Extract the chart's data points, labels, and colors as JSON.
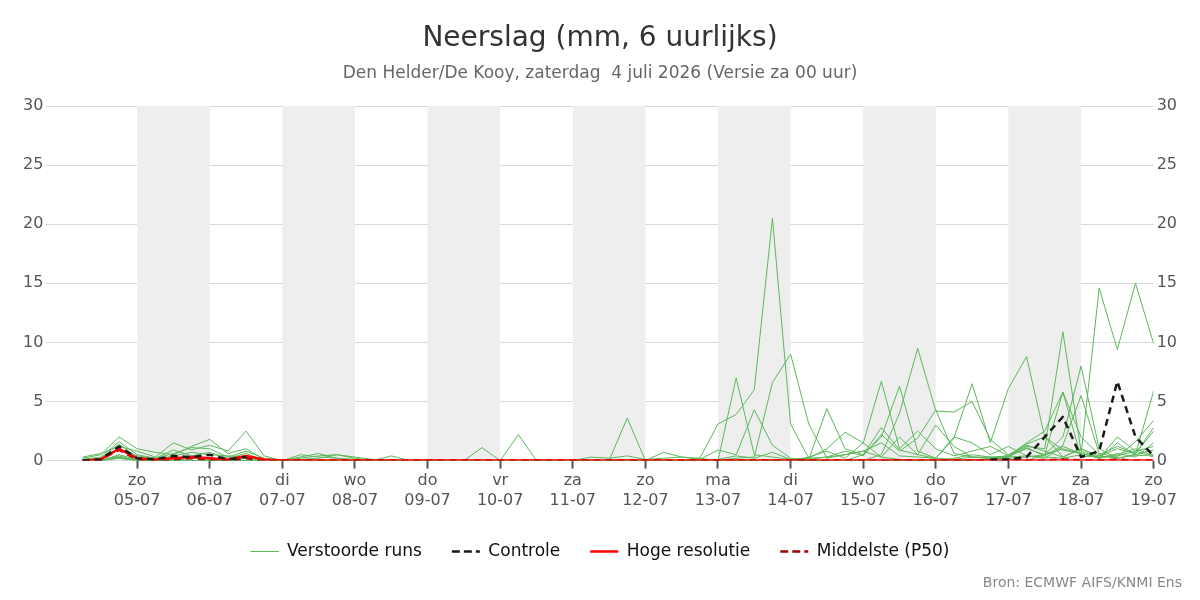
{
  "chart_data": {
    "type": "line",
    "title": "Neerslag (mm, 6 uurlijks)",
    "subtitle": "Den Helder/De Kooy, zaterdag  4 juli 2026 (Versie za 00 uur)",
    "x": [
      "2026-07-04T06:00",
      "2026-07-04T12:00",
      "2026-07-04T18:00",
      "2026-07-05T00:00",
      "2026-07-05T06:00",
      "2026-07-05T12:00",
      "2026-07-05T18:00",
      "2026-07-06T00:00",
      "2026-07-06T06:00",
      "2026-07-06T12:00",
      "2026-07-06T18:00",
      "2026-07-07T00:00",
      "2026-07-07T06:00",
      "2026-07-07T12:00",
      "2026-07-07T18:00",
      "2026-07-08T00:00",
      "2026-07-08T06:00",
      "2026-07-08T12:00",
      "2026-07-08T18:00",
      "2026-07-09T00:00",
      "2026-07-09T06:00",
      "2026-07-09T12:00",
      "2026-07-09T18:00",
      "2026-07-10T00:00",
      "2026-07-10T06:00",
      "2026-07-10T12:00",
      "2026-07-10T18:00",
      "2026-07-11T00:00",
      "2026-07-11T06:00",
      "2026-07-11T12:00",
      "2026-07-11T18:00",
      "2026-07-12T00:00",
      "2026-07-12T06:00",
      "2026-07-12T12:00",
      "2026-07-12T18:00",
      "2026-07-13T00:00",
      "2026-07-13T06:00",
      "2026-07-13T12:00",
      "2026-07-13T18:00",
      "2026-07-14T00:00",
      "2026-07-14T06:00",
      "2026-07-14T12:00",
      "2026-07-14T18:00",
      "2026-07-15T00:00",
      "2026-07-15T06:00",
      "2026-07-15T12:00",
      "2026-07-15T18:00",
      "2026-07-16T00:00",
      "2026-07-16T06:00",
      "2026-07-16T12:00",
      "2026-07-16T18:00",
      "2026-07-17T00:00",
      "2026-07-17T06:00",
      "2026-07-17T12:00",
      "2026-07-17T18:00",
      "2026-07-18T00:00",
      "2026-07-18T06:00",
      "2026-07-18T12:00",
      "2026-07-18T18:00",
      "2026-07-19T00:00"
    ],
    "series": [
      {
        "name": "Verstoorde runs",
        "color": "#5cb85c",
        "line_style": "solid",
        "values": [
          0.2,
          0.5,
          2.0,
          1.0,
          0.7,
          0.5,
          1.2,
          1.8,
          0.6,
          1.0,
          0.1,
          0,
          0,
          0,
          0,
          0,
          0,
          0,
          0,
          0,
          0,
          0,
          0,
          0,
          0,
          0,
          0,
          0,
          0,
          0,
          0,
          0,
          0,
          0,
          0.2,
          3.1,
          3.9,
          6.0,
          20.5,
          3.1,
          0.2,
          0.3,
          0.5,
          0.8,
          0.3,
          0.1,
          0,
          0,
          0.2,
          0.5,
          0.3,
          0.1,
          0,
          0.5,
          1.0,
          0.6,
          0.3,
          0.4,
          0.8,
          1.2
        ]
      },
      {
        "color": "#5cb85c",
        "line_style": "solid",
        "values": [
          0.3,
          0.6,
          1.2,
          0.8,
          0.3,
          1.5,
          0.9,
          1.3,
          0.8,
          2.5,
          0.4,
          0,
          0.5,
          0.3,
          0.2,
          0,
          0,
          0,
          0,
          0,
          0,
          0,
          1.1,
          0,
          2.2,
          0,
          0,
          0,
          0,
          0,
          3.6,
          0,
          0.7,
          0.3,
          0.2,
          0,
          7.0,
          0.5,
          0.3,
          0.1,
          0.2,
          1.0,
          2.4,
          1.5,
          0.3,
          2.0,
          0.5,
          0.2,
          0.1,
          0.3,
          0.2,
          0.4,
          1.0,
          0.5,
          5.8,
          0.3,
          0.4,
          1.0,
          0.6,
          2.5
        ]
      },
      {
        "color": "#5cb85c",
        "line_style": "solid",
        "values": [
          0.1,
          0.3,
          1.6,
          0.5,
          0.2,
          0.6,
          1.1,
          1.0,
          0.3,
          0.8,
          0.2,
          0,
          0.3,
          0.6,
          0.2,
          0.1,
          0,
          0,
          0,
          0.1,
          0,
          0,
          0,
          0,
          0,
          0,
          0,
          0,
          0.3,
          0.2,
          0.4,
          0.1,
          0.2,
          0.3,
          0.1,
          0.9,
          0.5,
          4.3,
          1.3,
          0.2,
          0.1,
          0.3,
          0.8,
          0.4,
          2.2,
          0.8,
          1.9,
          4.3,
          0.6,
          0.3,
          0.2,
          0.3,
          1.1,
          0.4,
          1.3,
          5.5,
          0.6,
          0.3,
          1.6,
          3.4
        ]
      },
      {
        "color": "#5cb85c",
        "line_style": "solid",
        "values": [
          0,
          0.2,
          1.0,
          0.4,
          0.2,
          0.9,
          0.4,
          0.7,
          0.2,
          0.6,
          0,
          0,
          0.2,
          0.4,
          0.5,
          0.2,
          0,
          0.4,
          0,
          0,
          0,
          0,
          0,
          0,
          0,
          0,
          0,
          0,
          0,
          0,
          0,
          0,
          0,
          0,
          0,
          0,
          0.2,
          0.3,
          6.6,
          9.0,
          3.1,
          0.2,
          0.5,
          0.8,
          1.5,
          0.4,
          0.3,
          0.2,
          2.0,
          1.5,
          0.5,
          1.2,
          0.4,
          0.2,
          1.2,
          0.6,
          0.2,
          2.0,
          0.8,
          0.3
        ]
      },
      {
        "color": "#5cb85c",
        "line_style": "solid",
        "values": [
          0.1,
          0.2,
          1.4,
          0.3,
          0.1,
          0.4,
          0.7,
          0.5,
          0.4,
          0.3,
          0,
          0,
          0.1,
          0.2,
          0.5,
          0.3,
          0.1,
          0,
          0,
          0,
          0,
          0,
          0,
          0,
          0,
          0,
          0,
          0,
          0,
          0,
          0,
          0,
          0,
          0,
          0,
          0.1,
          0.4,
          0.2,
          0.7,
          0.1,
          0.1,
          4.4,
          1.0,
          0.5,
          2.8,
          0.9,
          0.5,
          3.0,
          1.2,
          0.3,
          0.3,
          0.4,
          1.4,
          2.0,
          0.9,
          0.6,
          0.2,
          1.5,
          0.4,
          0.5
        ]
      },
      {
        "color": "#5cb85c",
        "line_style": "solid",
        "values": [
          0,
          0,
          0.5,
          0.1,
          0,
          0,
          0.2,
          0.1,
          0,
          0.2,
          0,
          0,
          0,
          0,
          0,
          0,
          0,
          0,
          0,
          0,
          0,
          0,
          0,
          0,
          0,
          0,
          0,
          0,
          0,
          0,
          0,
          0,
          0,
          0,
          0,
          0,
          0,
          0,
          0,
          0,
          0.3,
          0.8,
          0.2,
          1.5,
          6.7,
          1.0,
          2.5,
          1.0,
          0.4,
          0.8,
          1.2,
          0.4,
          1.5,
          2.5,
          5.8,
          2.0,
          0.5,
          1.2,
          0.6,
          2.8
        ]
      },
      {
        "color": "#5cb85c",
        "line_style": "solid",
        "values": [
          0,
          0,
          0.3,
          0,
          0,
          0,
          0,
          0,
          0,
          0,
          0,
          0,
          0,
          0,
          0,
          0,
          0,
          0,
          0,
          0,
          0,
          0,
          0,
          0,
          0,
          0,
          0,
          0,
          0,
          0,
          0,
          0,
          0,
          0,
          0,
          0,
          0,
          0,
          0,
          0,
          0,
          0,
          0,
          0,
          0.5,
          4.0,
          9.5,
          4.2,
          4.1,
          5.0,
          1.8,
          0.5,
          1.3,
          0.8,
          0.3,
          1.0,
          0.4,
          0.2,
          0.5,
          0.9
        ]
      },
      {
        "color": "#5cb85c",
        "line_style": "solid",
        "values": [
          0,
          0,
          0.4,
          0,
          0,
          0,
          0,
          0,
          0,
          0,
          0,
          0,
          0,
          0,
          0,
          0,
          0,
          0,
          0,
          0,
          0,
          0,
          0,
          0,
          0,
          0,
          0,
          0,
          0,
          0,
          0,
          0,
          0,
          0,
          0,
          0,
          0,
          0,
          0,
          0,
          0,
          0,
          0,
          0.5,
          2.0,
          6.3,
          0.8,
          0.2,
          1.9,
          6.5,
          1.5,
          6.1,
          8.8,
          2.0,
          0.3,
          1.0,
          0.2,
          0.5,
          1.0,
          0.4
        ]
      },
      {
        "color": "#5cb85c",
        "line_style": "solid",
        "values": [
          0,
          0,
          0.2,
          0,
          0,
          0,
          0,
          0,
          0,
          0,
          0,
          0,
          0,
          0,
          0,
          0,
          0,
          0,
          0,
          0,
          0,
          0,
          0,
          0,
          0,
          0,
          0,
          0,
          0,
          0,
          0,
          0,
          0,
          0,
          0,
          0,
          0,
          0,
          0,
          0,
          0,
          0,
          0,
          0,
          0,
          0,
          0,
          0,
          0,
          0,
          0.2,
          0.4,
          1.2,
          1.0,
          10.9,
          0.8,
          0.2,
          0.6,
          0.3,
          1.5
        ]
      },
      {
        "color": "#5cb85c",
        "line_style": "solid",
        "values": [
          0,
          0,
          0.3,
          0,
          0,
          0,
          0,
          0,
          0,
          0,
          0,
          0,
          0,
          0,
          0,
          0,
          0,
          0,
          0,
          0,
          0,
          0,
          0,
          0,
          0,
          0,
          0,
          0,
          0,
          0,
          0,
          0,
          0,
          0,
          0,
          0,
          0,
          0,
          0,
          0,
          0,
          0,
          0,
          0,
          0,
          0,
          0,
          0,
          0,
          0,
          0.1,
          0.3,
          0.4,
          0.3,
          0.2,
          0.5,
          14.6,
          9.4,
          15.0,
          9.9
        ]
      },
      {
        "color": "#5cb85c",
        "line_style": "solid",
        "values": [
          0,
          0,
          0.2,
          0,
          0,
          0,
          0,
          0,
          0,
          0,
          0,
          0,
          0,
          0,
          0,
          0,
          0,
          0,
          0,
          0,
          0,
          0,
          0,
          0,
          0,
          0,
          0,
          0,
          0,
          0,
          0,
          0,
          0,
          0,
          0,
          0,
          0,
          0,
          0,
          0,
          0,
          0,
          0,
          0,
          0,
          0,
          0,
          0,
          0,
          0,
          0.1,
          0.2,
          0.3,
          0.5,
          2.0,
          8.0,
          1.0,
          0.2,
          0.5,
          5.9
        ]
      },
      {
        "name": "Controle",
        "color": "#1a1a1a",
        "line_style": "dashed",
        "values": [
          0,
          0.1,
          1.2,
          0.2,
          0.1,
          0.4,
          0.3,
          0.5,
          0.1,
          0.3,
          null,
          null,
          null,
          null,
          null,
          null,
          null,
          null,
          null,
          null,
          null,
          null,
          null,
          null,
          null,
          null,
          null,
          null,
          null,
          null,
          null,
          null,
          null,
          null,
          null,
          null,
          null,
          null,
          null,
          null,
          null,
          null,
          null,
          null,
          null,
          null,
          null,
          null,
          null,
          null,
          0.1,
          0.1,
          0.3,
          2.0,
          3.7,
          0.3,
          0.8,
          6.7,
          2.0,
          0.4
        ]
      },
      {
        "name": "Hoge resolutie",
        "color": "#ff0000",
        "line_style": "solid",
        "values": [
          0,
          0.1,
          1.0,
          0.2,
          0.1,
          0.2,
          0.3,
          0.2,
          0.1,
          0.4,
          0.1,
          0,
          0,
          0,
          0,
          0,
          0,
          0,
          0,
          0,
          0,
          0,
          0,
          0,
          0,
          0,
          0,
          0,
          0,
          0,
          0,
          0,
          0,
          0,
          0,
          0,
          0,
          0,
          0,
          0,
          0,
          0,
          0,
          0,
          0,
          0,
          0,
          0,
          0,
          0,
          0,
          0,
          0,
          0,
          0,
          0,
          0,
          0,
          0,
          0
        ]
      },
      {
        "name": "Middelste (P50)",
        "color": "#a00000",
        "line_style": "dashed",
        "values": [
          0,
          0.1,
          0.9,
          0.1,
          0,
          0.1,
          0.2,
          0.1,
          0,
          0.2,
          0,
          0,
          0,
          0,
          0,
          0,
          0,
          0,
          0,
          0,
          0,
          0,
          0,
          0,
          0,
          0,
          0,
          0,
          0,
          0,
          0,
          0,
          0,
          0,
          0,
          0,
          0,
          0,
          0,
          0,
          0,
          0,
          0,
          0,
          0,
          0,
          0,
          0,
          0,
          0,
          0,
          0,
          0,
          0,
          0.1,
          0,
          0,
          0.1,
          0,
          0
        ]
      }
    ],
    "xlim": [
      "2026-07-03T18:00",
      "2026-07-19T00:00"
    ],
    "xticks": [
      {
        "value": "2026-07-05",
        "label": "zo\n05-07"
      },
      {
        "value": "2026-07-06",
        "label": "ma\n06-07"
      },
      {
        "value": "2026-07-07",
        "label": "di\n07-07"
      },
      {
        "value": "2026-07-08",
        "label": "wo\n08-07"
      },
      {
        "value": "2026-07-09",
        "label": "do\n09-07"
      },
      {
        "value": "2026-07-10",
        "label": "vr\n10-07"
      },
      {
        "value": "2026-07-11",
        "label": "za\n11-07"
      },
      {
        "value": "2026-07-12",
        "label": "zo\n12-07"
      },
      {
        "value": "2026-07-13",
        "label": "ma\n13-07"
      },
      {
        "value": "2026-07-14",
        "label": "di\n14-07"
      },
      {
        "value": "2026-07-15",
        "label": "wo\n15-07"
      },
      {
        "value": "2026-07-16",
        "label": "do\n16-07"
      },
      {
        "value": "2026-07-17",
        "label": "vr\n17-07"
      },
      {
        "value": "2026-07-18",
        "label": "za\n18-07"
      },
      {
        "value": "2026-07-19",
        "label": "zo\n19-07"
      }
    ],
    "ylim": [
      0,
      30
    ],
    "yticks": [
      0,
      5,
      10,
      15,
      20,
      25,
      30
    ],
    "y2lim": [
      0,
      30
    ],
    "y2ticks": [
      0,
      5,
      10,
      15,
      20,
      25,
      30
    ],
    "bands": [
      {
        "axis": "x",
        "from": "2026-07-05",
        "to": "2026-07-06",
        "color": "#eeeeee"
      },
      {
        "axis": "x",
        "from": "2026-07-07",
        "to": "2026-07-08",
        "color": "#eeeeee"
      },
      {
        "axis": "x",
        "from": "2026-07-09",
        "to": "2026-07-10",
        "color": "#eeeeee"
      },
      {
        "axis": "x",
        "from": "2026-07-11",
        "to": "2026-07-12",
        "color": "#eeeeee"
      },
      {
        "axis": "x",
        "from": "2026-07-13",
        "to": "2026-07-14",
        "color": "#eeeeee"
      },
      {
        "axis": "x",
        "from": "2026-07-15",
        "to": "2026-07-16",
        "color": "#eeeeee"
      },
      {
        "axis": "x",
        "from": "2026-07-17",
        "to": "2026-07-18",
        "color": "#eeeeee"
      }
    ],
    "grid": "y",
    "legend": "bottom",
    "marker": "none",
    "annotations": [
      "Bron: ECMWF AIFS/KNMI Ens"
    ]
  }
}
